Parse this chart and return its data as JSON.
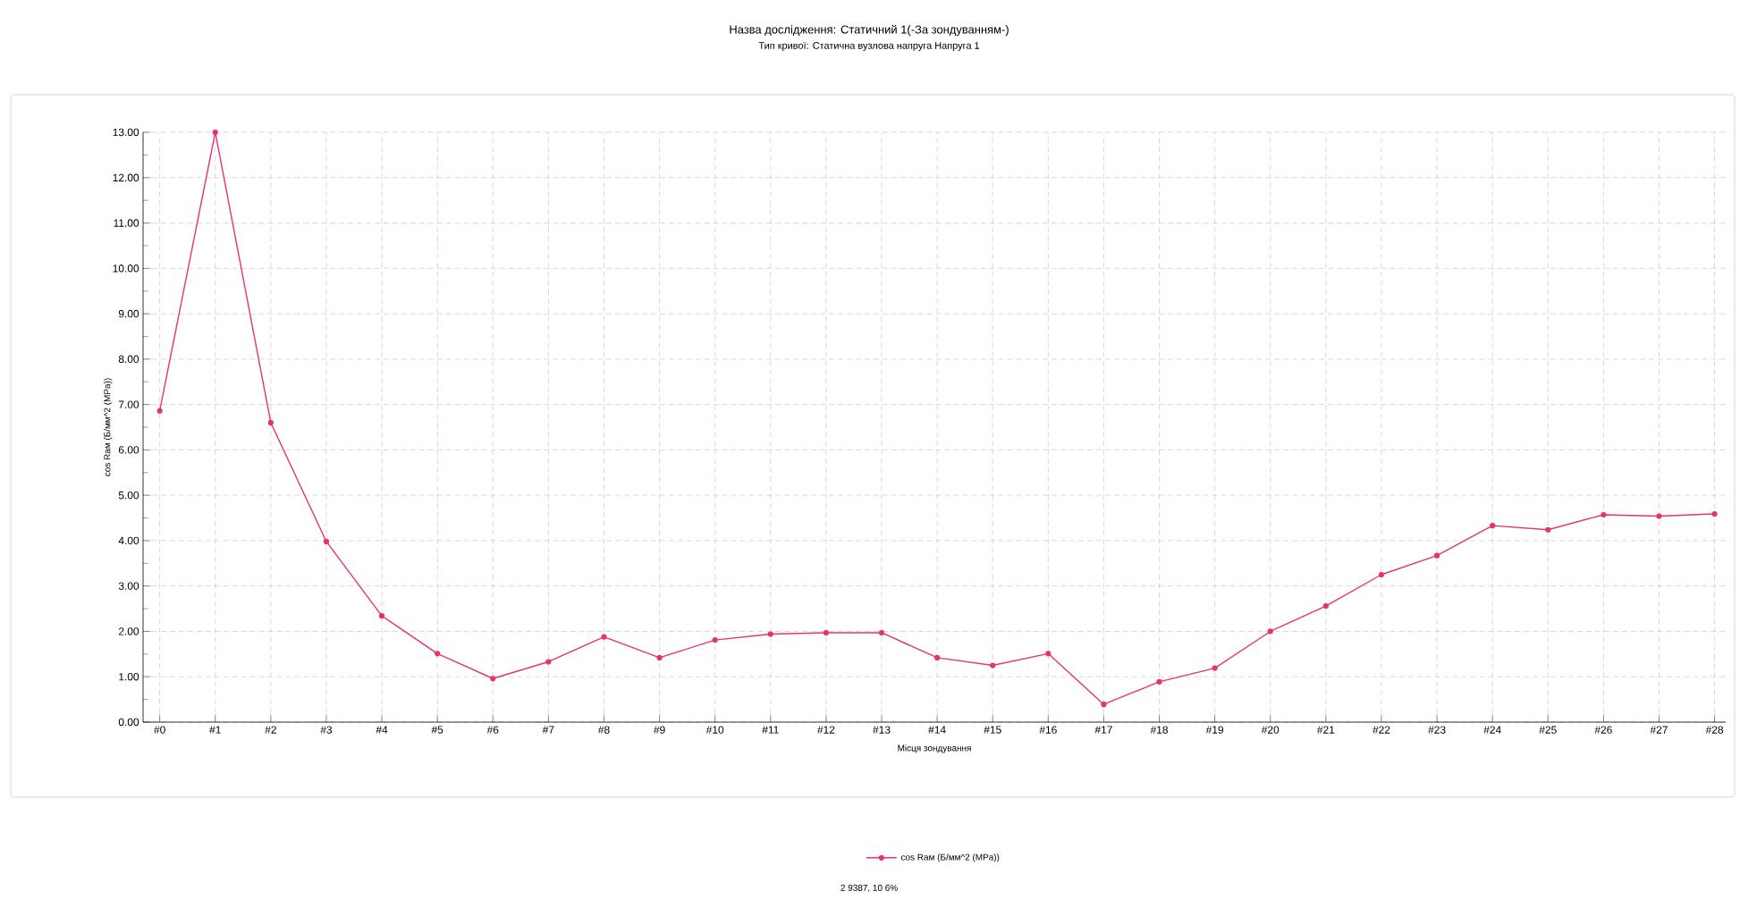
{
  "chart_data": {
    "type": "line",
    "title": "Назва дослідження: Статичний 1(-За зондуванням-)",
    "subtitle": "Тип кривої: Статична вузлова напруга Напруга 1",
    "xlabel": "Місця зондування",
    "ylabel": "cos Rам (Б/мм^2 (MPa))",
    "categories": [
      "#0",
      "#1",
      "#2",
      "#3",
      "#4",
      "#5",
      "#6",
      "#7",
      "#8",
      "#9",
      "#10",
      "#11",
      "#12",
      "#13",
      "#14",
      "#15",
      "#16",
      "#17",
      "#18",
      "#19",
      "#20",
      "#21",
      "#22",
      "#23",
      "#24",
      "#25",
      "#26",
      "#27",
      "#28"
    ],
    "series": [
      {
        "name": "cos Rам (Б/мм^2 (MPa))",
        "color": "#e8336f",
        "values": [
          6.86,
          13.0,
          6.6,
          3.98,
          2.34,
          1.51,
          0.96,
          1.33,
          1.88,
          1.42,
          1.81,
          1.94,
          1.97,
          1.97,
          1.42,
          1.25,
          1.51,
          0.39,
          0.89,
          1.19,
          2.0,
          2.56,
          3.25,
          3.67,
          4.33,
          4.24,
          4.57,
          4.54,
          4.59
        ]
      }
    ],
    "ylim": [
      0,
      13
    ],
    "yticks": [
      {
        "value": 0,
        "label": "0.00"
      },
      {
        "value": 1,
        "label": "1.00"
      },
      {
        "value": 2,
        "label": "2.00"
      },
      {
        "value": 3,
        "label": "3.00"
      },
      {
        "value": 4,
        "label": "4.00"
      },
      {
        "value": 5,
        "label": "5.00"
      },
      {
        "value": 6,
        "label": "6.00"
      },
      {
        "value": 7,
        "label": "7.00"
      },
      {
        "value": 8,
        "label": "8.00"
      },
      {
        "value": 9,
        "label": "9.00"
      },
      {
        "value": 10,
        "label": "10.00"
      },
      {
        "value": 11,
        "label": "11.00"
      },
      {
        "value": 12,
        "label": "12.00"
      },
      {
        "value": 13,
        "label": "13.00"
      }
    ],
    "grid": true,
    "legend": "bottom",
    "marker": "circle",
    "line_style": "solid",
    "annotations": [
      "2 9387, 10 6%"
    ]
  }
}
